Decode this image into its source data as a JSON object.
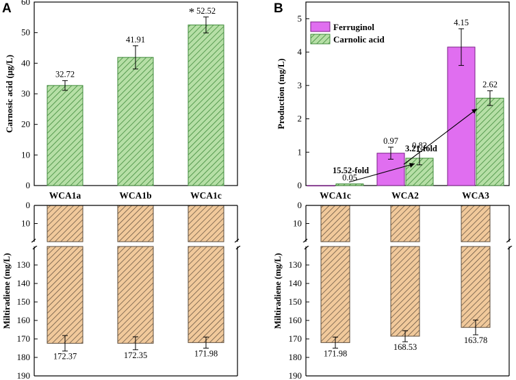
{
  "colors": {
    "green_fill": "#b6dfa6",
    "green_line": "#3f8a3a",
    "orange_fill": "#f1c99b",
    "orange_line": "#5a4a3a",
    "magenta_fill": "#e06ef0",
    "magenta_line": "#7a1f86"
  },
  "chart_data": [
    {
      "id": "A-top",
      "panel": "A",
      "type": "bar",
      "ylabel": "Carnosic acid (μg/L)",
      "ylim": [
        0,
        60
      ],
      "yticks": [
        "0",
        "10",
        "20",
        "30",
        "40",
        "50",
        "60"
      ],
      "categories": [
        "WCA1a",
        "WCA1b",
        "WCA1c"
      ],
      "series": [
        {
          "name": "Carnosic acid",
          "color": "green",
          "values": [
            32.72,
            41.91,
            52.52
          ],
          "errors": [
            1.6,
            3.8,
            2.6
          ]
        }
      ],
      "labels": [
        "32.72",
        "41.91",
        "52.52"
      ],
      "significance": {
        "category": "WCA1c",
        "mark": "*"
      }
    },
    {
      "id": "A-bottom",
      "panel": "A",
      "type": "bar",
      "orientation": "inverted",
      "ylabel": "Miltiradiene (mg/L)",
      "axis_break": [
        20,
        120
      ],
      "yticks_upper": [
        "0",
        "10"
      ],
      "yticks_lower": [
        "130",
        "140",
        "150",
        "160",
        "170",
        "180",
        "190"
      ],
      "categories": [
        "WCA1a",
        "WCA1b",
        "WCA1c"
      ],
      "series": [
        {
          "name": "Miltiradiene",
          "color": "orange",
          "values": [
            172.37,
            172.35,
            171.98
          ],
          "errors": [
            4.2,
            3.5,
            3.0
          ]
        }
      ],
      "labels": [
        "172.37",
        "172.35",
        "171.98"
      ]
    },
    {
      "id": "B-top",
      "panel": "B",
      "type": "bar",
      "ylabel": "Production (mg/L)",
      "ylim": [
        0,
        5.5
      ],
      "yticks": [
        "0",
        "1",
        "2",
        "3",
        "4",
        "5"
      ],
      "categories": [
        "WCA1c",
        "WCA2",
        "WCA3"
      ],
      "series": [
        {
          "name": "Ferruginol",
          "color": "magenta",
          "values": [
            0,
            0.97,
            4.15
          ],
          "errors": [
            0,
            0.18,
            0.55
          ]
        },
        {
          "name": "Carnolic acid",
          "color": "green",
          "values": [
            0.05,
            0.82,
            2.62
          ],
          "errors": [
            0,
            0.2,
            0.22
          ]
        }
      ],
      "labels": {
        "Ferruginol": [
          "",
          "0.97",
          "4.15"
        ],
        "Carnolic acid": [
          "0.05",
          "0.82",
          "2.62"
        ]
      },
      "annotations": [
        "15.52-fold",
        "3.21-fold"
      ],
      "legend": [
        "Ferruginol",
        "Carnolic acid"
      ],
      "legend_position": "top-left"
    },
    {
      "id": "B-bottom",
      "panel": "B",
      "type": "bar",
      "orientation": "inverted",
      "ylabel": "Miltiradiene (mg/L)",
      "axis_break": [
        20,
        120
      ],
      "yticks_upper": [
        "0",
        "10"
      ],
      "yticks_lower": [
        "130",
        "140",
        "150",
        "160",
        "170",
        "180",
        "190"
      ],
      "categories": [
        "WCA1c",
        "WCA2",
        "WCA3"
      ],
      "series": [
        {
          "name": "Miltiradiene",
          "color": "orange",
          "values": [
            171.98,
            168.53,
            163.78
          ],
          "errors": [
            3.0,
            3.0,
            4.0
          ]
        }
      ],
      "labels": [
        "171.98",
        "168.53",
        "163.78"
      ]
    }
  ],
  "panel_letters": [
    "A",
    "B"
  ]
}
